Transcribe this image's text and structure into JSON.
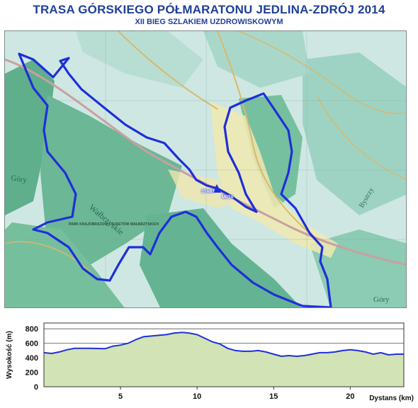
{
  "header": {
    "title": "TRASA GÓRSKIEGO PÓŁMARATONU JEDLINA-ZDRÓJ 2014",
    "subtitle": "XII BIEG SZLAKIEM UZDROWISKOWYM"
  },
  "map": {
    "route_color": "#1e2fd8",
    "start_label": "START",
    "finish_label": "META",
    "labels": {
      "gory": "Góry",
      "walbrzyskie": "Wałbrzyskie",
      "park": "PARK KRAJOBRAZOWY SUDETÓW WAŁBRZYSKICH",
      "gory_right": "Góry",
      "bystrzy": "Bystrzy"
    }
  },
  "chart_data": {
    "type": "area",
    "ylabel": "Wysokość (m)",
    "xlabel": "Dystans (km)",
    "xlim": [
      0,
      23.5
    ],
    "ylim": [
      0,
      880
    ],
    "xticks": [
      5,
      10,
      15,
      20
    ],
    "yticks": [
      0,
      200,
      400,
      600,
      800
    ],
    "grid": true,
    "fill_color": "#d2e3b5",
    "line_color": "#1e2fd8",
    "x": [
      0,
      0.5,
      1,
      1.5,
      2,
      3,
      4,
      4.5,
      5,
      5.5,
      6,
      6.5,
      7,
      7.5,
      8,
      8.5,
      9,
      9.5,
      10,
      10.5,
      11,
      11.5,
      12,
      12.5,
      13,
      13.5,
      14,
      14.5,
      15,
      15.5,
      16,
      16.5,
      17,
      17.5,
      18,
      18.5,
      19,
      19.5,
      20,
      20.5,
      21,
      21.5,
      22,
      22.5,
      23,
      23.5
    ],
    "y": [
      470,
      460,
      480,
      510,
      530,
      530,
      525,
      560,
      575,
      600,
      650,
      690,
      700,
      710,
      720,
      740,
      750,
      740,
      720,
      670,
      620,
      590,
      530,
      500,
      490,
      490,
      500,
      480,
      450,
      420,
      430,
      420,
      430,
      450,
      470,
      470,
      480,
      500,
      510,
      500,
      480,
      450,
      470,
      440,
      450,
      450
    ]
  }
}
